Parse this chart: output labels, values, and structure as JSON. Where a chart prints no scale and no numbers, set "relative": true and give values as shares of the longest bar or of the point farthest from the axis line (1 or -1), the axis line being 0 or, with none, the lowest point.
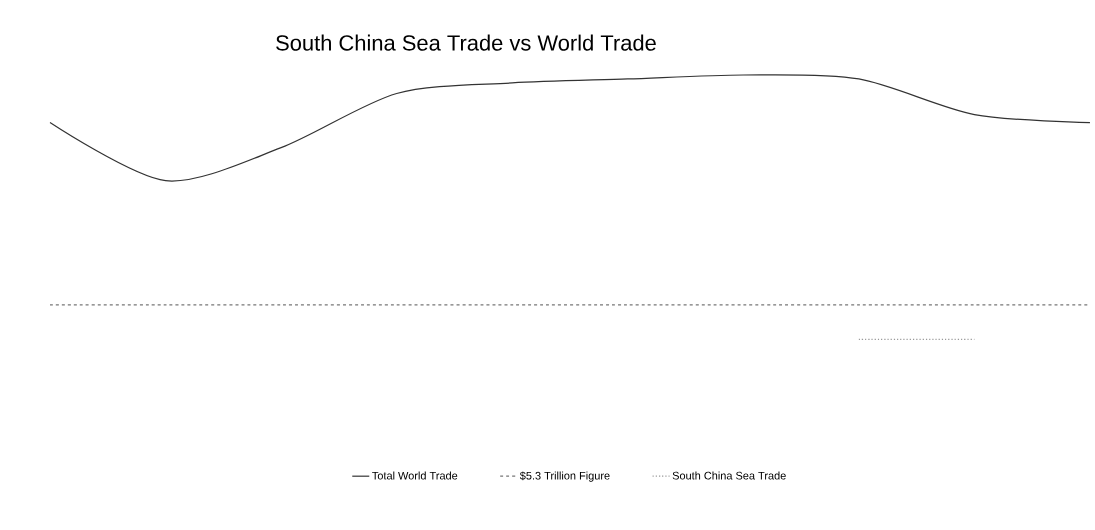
{
  "chart_data": {
    "type": "line",
    "title": "South China Sea Trade vs World Trade",
    "relative": true,
    "categories": [
      null,
      null,
      null,
      null,
      null,
      null,
      null,
      null,
      null,
      null
    ],
    "series": [
      {
        "name": "Total World Trade",
        "color": "#333333",
        "line_style": "solid",
        "values": [
          0.82,
          0.6,
          0.725,
          0.93,
          0.97,
          0.985,
          1,
          0.985,
          0.85,
          0.82
        ]
      },
      {
        "name": "$5.3 Trillion Figure",
        "color": "#777777",
        "line_style": "dashed",
        "values": [
          0.13,
          0.13,
          0.13,
          0.13,
          0.13,
          0.13,
          0.13,
          0.13,
          0.13,
          0.13
        ]
      },
      {
        "name": "South China Sea Trade",
        "color": "#999999",
        "line_style": "dotted",
        "values": [
          null,
          null,
          null,
          null,
          null,
          null,
          null,
          0,
          0,
          null
        ]
      }
    ],
    "legend": "bottom",
    "marker": "none"
  }
}
